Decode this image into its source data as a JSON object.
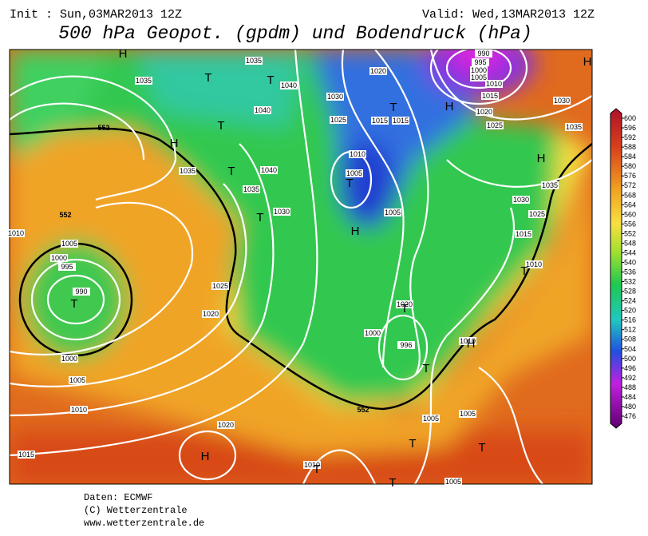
{
  "header": {
    "init": "Init : Sun,03MAR2013 12Z",
    "valid": "Valid: Wed,13MAR2013 12Z",
    "title": "500 hPa Geopot. (gpdm) und Bodendruck (hPa)"
  },
  "colorbar": {
    "ticks": [
      600,
      596,
      592,
      588,
      584,
      580,
      576,
      572,
      568,
      564,
      560,
      556,
      552,
      548,
      544,
      540,
      536,
      532,
      528,
      524,
      520,
      516,
      512,
      508,
      504,
      500,
      496,
      492,
      488,
      484,
      480,
      476
    ]
  },
  "map": {
    "contour_labels": [
      "552",
      "552",
      "552"
    ],
    "isobar_labels": [
      "1035",
      "1035",
      "1040",
      "1020",
      "990",
      "995",
      "1000",
      "1005",
      "1010",
      "1015",
      "1030",
      "1040",
      "1025",
      "1015",
      "1015",
      "1020",
      "1030",
      "1025",
      "1035",
      "1010",
      "1005",
      "1035",
      "1040",
      "1035",
      "1030",
      "1035",
      "1030",
      "1025",
      "1005",
      "1015",
      "1010",
      "1010",
      "1005",
      "1000",
      "995",
      "990",
      "1025",
      "1020",
      "1020",
      "1000",
      "996",
      "1010",
      "1000",
      "1005",
      "1010",
      "1020",
      "1005",
      "1005",
      "1015",
      "1010",
      "1005"
    ],
    "pressure_centers": [
      "H",
      "T",
      "T",
      "T",
      "H",
      "T",
      "T",
      "T",
      "H",
      "H",
      "T",
      "H",
      "T",
      "T",
      "T",
      "H",
      "T",
      "H",
      "T",
      "T",
      "T",
      "T",
      "H"
    ]
  },
  "footer": {
    "source": "Daten: ECMWF",
    "copyright": "(C) Wetterzentrale",
    "url": "www.wetterzentrale.de"
  }
}
